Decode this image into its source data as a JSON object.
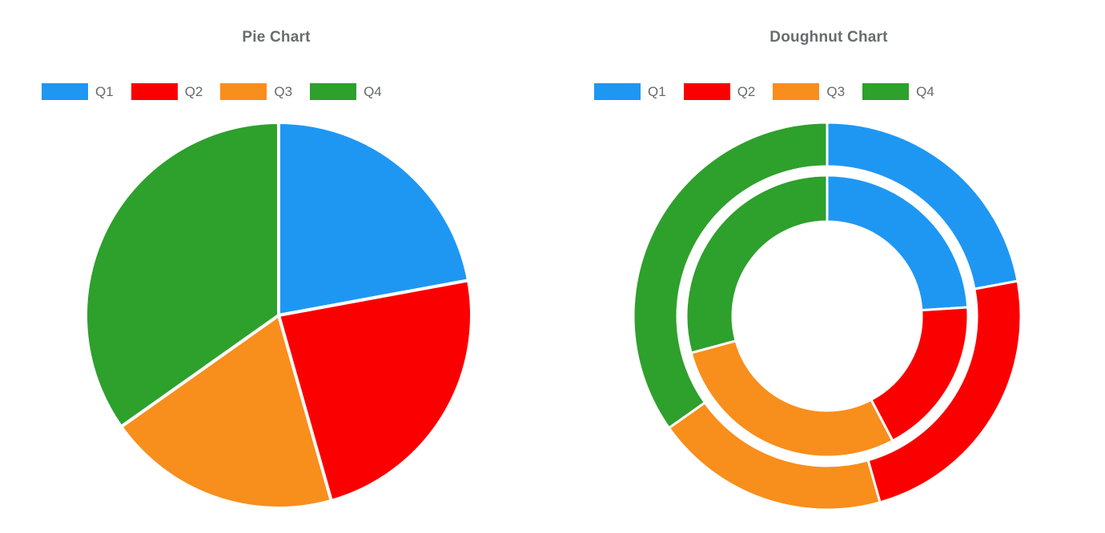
{
  "styles": {
    "background": "#FFFFFF",
    "title_color": "#696C6E",
    "legend_text_color": "#66696B",
    "slice_border_color": "#FFFFFF"
  },
  "chart_data": [
    {
      "type": "pie",
      "title": "Pie Chart",
      "categories": [
        "Q1",
        "Q2",
        "Q3",
        "Q4"
      ],
      "values": [
        22.1,
        23.5,
        19.6,
        34.8
      ],
      "unit": "percent (estimated from slice angles; no numeric labels shown)",
      "colors": [
        "#1E97F3",
        "#FA0000",
        "#F88E1C",
        "#2EA02C"
      ],
      "start_angle": "12 o'clock, clockwise",
      "legend_position": "top",
      "legend_entries": [
        "Q1",
        "Q2",
        "Q3",
        "Q4"
      ]
    },
    {
      "type": "pie",
      "subtype": "doughnut",
      "title": "Doughnut Chart",
      "categories": [
        "Q1",
        "Q2",
        "Q3",
        "Q4"
      ],
      "series": [
        {
          "name": "outer ring",
          "values": [
            22.1,
            23.5,
            19.6,
            34.8
          ]
        },
        {
          "name": "inner ring",
          "values": [
            24.0,
            18.3,
            28.5,
            29.2
          ]
        }
      ],
      "unit": "percent (estimated from arc angles; no numeric labels shown)",
      "colors": [
        "#1E97F3",
        "#FA0000",
        "#F88E1C",
        "#2EA02C"
      ],
      "start_angle": "12 o'clock, clockwise",
      "legend_position": "top",
      "legend_entries": [
        "Q1",
        "Q2",
        "Q3",
        "Q4"
      ]
    }
  ]
}
